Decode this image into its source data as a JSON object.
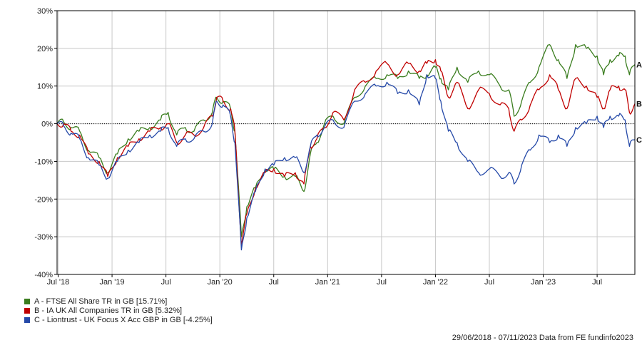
{
  "chart_data": {
    "type": "line",
    "title": "",
    "xlabel": "",
    "ylabel": "",
    "ylim": [
      -40,
      30
    ],
    "y_ticks": [
      30,
      20,
      10,
      0,
      -10,
      -20,
      -30,
      -40
    ],
    "y_tick_labels": [
      "30%",
      "20%",
      "10%",
      "0%",
      "-10%",
      "-20%",
      "-30%",
      "-40%"
    ],
    "x_range": [
      2018.49,
      2023.85
    ],
    "x_ticks": [
      {
        "x": 2018.5,
        "label": "Jul '18"
      },
      {
        "x": 2019.0,
        "label": "Jan '19"
      },
      {
        "x": 2019.5,
        "label": "Jul"
      },
      {
        "x": 2020.0,
        "label": "Jan '20"
      },
      {
        "x": 2020.5,
        "label": "Jul"
      },
      {
        "x": 2021.0,
        "label": "Jan '21"
      },
      {
        "x": 2021.5,
        "label": "Jul"
      },
      {
        "x": 2022.0,
        "label": "Jan '22"
      },
      {
        "x": 2022.5,
        "label": "Jul"
      },
      {
        "x": 2023.0,
        "label": "Jan '23"
      },
      {
        "x": 2023.5,
        "label": "Jul"
      }
    ],
    "grid": true,
    "legend_position": "bottom-left",
    "series": [
      {
        "name": "A - FTSE All Share TR in GB [15.71%]",
        "end_label": "A",
        "color": "#3a7d1e",
        "points": [
          [
            2018.49,
            0
          ],
          [
            2018.55,
            0.5
          ],
          [
            2018.62,
            -1
          ],
          [
            2018.7,
            -2
          ],
          [
            2018.78,
            -7
          ],
          [
            2018.88,
            -9
          ],
          [
            2018.96,
            -13
          ],
          [
            2019.05,
            -8
          ],
          [
            2019.15,
            -4
          ],
          [
            2019.25,
            -2
          ],
          [
            2019.35,
            -1
          ],
          [
            2019.45,
            1
          ],
          [
            2019.52,
            3
          ],
          [
            2019.6,
            -3
          ],
          [
            2019.68,
            -1
          ],
          [
            2019.76,
            -2
          ],
          [
            2019.85,
            1
          ],
          [
            2019.93,
            3
          ],
          [
            2019.97,
            7
          ],
          [
            2020.03,
            6
          ],
          [
            2020.1,
            4
          ],
          [
            2020.14,
            -2
          ],
          [
            2020.2,
            -30
          ],
          [
            2020.25,
            -22
          ],
          [
            2020.33,
            -17
          ],
          [
            2020.42,
            -12
          ],
          [
            2020.5,
            -12
          ],
          [
            2020.6,
            -14
          ],
          [
            2020.7,
            -14
          ],
          [
            2020.78,
            -18
          ],
          [
            2020.84,
            -8
          ],
          [
            2020.9,
            -5
          ],
          [
            2020.97,
            0
          ],
          [
            2021.05,
            2
          ],
          [
            2021.15,
            0
          ],
          [
            2021.25,
            7
          ],
          [
            2021.35,
            10
          ],
          [
            2021.45,
            12
          ],
          [
            2021.55,
            13
          ],
          [
            2021.65,
            12
          ],
          [
            2021.75,
            14
          ],
          [
            2021.85,
            12
          ],
          [
            2021.92,
            13
          ],
          [
            2022.0,
            15
          ],
          [
            2022.05,
            12
          ],
          [
            2022.12,
            9
          ],
          [
            2022.2,
            15
          ],
          [
            2022.3,
            11
          ],
          [
            2022.4,
            14
          ],
          [
            2022.5,
            13
          ],
          [
            2022.6,
            10
          ],
          [
            2022.68,
            9
          ],
          [
            2022.73,
            2
          ],
          [
            2022.8,
            6
          ],
          [
            2022.88,
            11
          ],
          [
            2022.96,
            15
          ],
          [
            2023.06,
            21
          ],
          [
            2023.14,
            17
          ],
          [
            2023.22,
            12
          ],
          [
            2023.3,
            21
          ],
          [
            2023.4,
            20
          ],
          [
            2023.5,
            18
          ],
          [
            2023.56,
            13
          ],
          [
            2023.62,
            17
          ],
          [
            2023.7,
            18
          ],
          [
            2023.76,
            18
          ],
          [
            2023.8,
            13
          ],
          [
            2023.85,
            15.71
          ]
        ]
      },
      {
        "name": "B - IA UK All Companies TR in GB [5.32%]",
        "end_label": "B",
        "color": "#c00000",
        "points": [
          [
            2018.49,
            0
          ],
          [
            2018.55,
            0
          ],
          [
            2018.62,
            -2
          ],
          [
            2018.7,
            -3
          ],
          [
            2018.78,
            -8
          ],
          [
            2018.88,
            -10
          ],
          [
            2018.96,
            -14
          ],
          [
            2019.05,
            -9
          ],
          [
            2019.15,
            -6
          ],
          [
            2019.25,
            -4
          ],
          [
            2019.35,
            -2
          ],
          [
            2019.45,
            -1
          ],
          [
            2019.52,
            0
          ],
          [
            2019.6,
            -5
          ],
          [
            2019.68,
            -3
          ],
          [
            2019.76,
            -3
          ],
          [
            2019.85,
            -1
          ],
          [
            2019.93,
            2
          ],
          [
            2019.97,
            7
          ],
          [
            2020.03,
            6
          ],
          [
            2020.1,
            4
          ],
          [
            2020.14,
            -2
          ],
          [
            2020.2,
            -32
          ],
          [
            2020.25,
            -24
          ],
          [
            2020.33,
            -17
          ],
          [
            2020.42,
            -13
          ],
          [
            2020.5,
            -12
          ],
          [
            2020.6,
            -14
          ],
          [
            2020.7,
            -13
          ],
          [
            2020.78,
            -16
          ],
          [
            2020.84,
            -6
          ],
          [
            2020.9,
            -4
          ],
          [
            2020.97,
            -1
          ],
          [
            2021.05,
            3
          ],
          [
            2021.15,
            1
          ],
          [
            2021.25,
            9
          ],
          [
            2021.35,
            11
          ],
          [
            2021.45,
            14
          ],
          [
            2021.55,
            16
          ],
          [
            2021.65,
            13
          ],
          [
            2021.75,
            16
          ],
          [
            2021.85,
            14
          ],
          [
            2021.92,
            16
          ],
          [
            2022.0,
            17
          ],
          [
            2022.05,
            14
          ],
          [
            2022.12,
            7
          ],
          [
            2022.2,
            11
          ],
          [
            2022.3,
            4
          ],
          [
            2022.4,
            9
          ],
          [
            2022.5,
            8
          ],
          [
            2022.6,
            5
          ],
          [
            2022.68,
            4
          ],
          [
            2022.73,
            -2
          ],
          [
            2022.8,
            1
          ],
          [
            2022.88,
            5
          ],
          [
            2022.96,
            9
          ],
          [
            2023.06,
            13
          ],
          [
            2023.14,
            9
          ],
          [
            2023.22,
            4
          ],
          [
            2023.3,
            12
          ],
          [
            2023.4,
            10
          ],
          [
            2023.5,
            7
          ],
          [
            2023.56,
            4
          ],
          [
            2023.62,
            9
          ],
          [
            2023.7,
            10
          ],
          [
            2023.76,
            9
          ],
          [
            2023.8,
            3
          ],
          [
            2023.85,
            5.32
          ]
        ]
      },
      {
        "name": "C - Liontrust - UK Focus X Acc GBP in GB [-4.25%]",
        "end_label": "C",
        "color": "#2549a8",
        "points": [
          [
            2018.49,
            0
          ],
          [
            2018.55,
            -0.5
          ],
          [
            2018.62,
            -2.5
          ],
          [
            2018.7,
            -4
          ],
          [
            2018.78,
            -9
          ],
          [
            2018.88,
            -11
          ],
          [
            2018.96,
            -14.5
          ],
          [
            2019.05,
            -10
          ],
          [
            2019.15,
            -7
          ],
          [
            2019.25,
            -5
          ],
          [
            2019.35,
            -3
          ],
          [
            2019.45,
            -2
          ],
          [
            2019.52,
            -1
          ],
          [
            2019.6,
            -6
          ],
          [
            2019.68,
            -4
          ],
          [
            2019.76,
            -4
          ],
          [
            2019.85,
            -2
          ],
          [
            2019.93,
            0
          ],
          [
            2019.97,
            6
          ],
          [
            2020.03,
            5
          ],
          [
            2020.1,
            2
          ],
          [
            2020.14,
            -5
          ],
          [
            2020.2,
            -33.5
          ],
          [
            2020.25,
            -25
          ],
          [
            2020.33,
            -18
          ],
          [
            2020.42,
            -12
          ],
          [
            2020.5,
            -11
          ],
          [
            2020.6,
            -9
          ],
          [
            2020.7,
            -9
          ],
          [
            2020.78,
            -13
          ],
          [
            2020.84,
            -6
          ],
          [
            2020.9,
            -3
          ],
          [
            2020.97,
            -1
          ],
          [
            2021.05,
            1
          ],
          [
            2021.15,
            -1
          ],
          [
            2021.25,
            6
          ],
          [
            2021.35,
            8
          ],
          [
            2021.45,
            10
          ],
          [
            2021.55,
            11
          ],
          [
            2021.65,
            8
          ],
          [
            2021.75,
            9
          ],
          [
            2021.85,
            5
          ],
          [
            2021.92,
            13
          ],
          [
            2022.0,
            12
          ],
          [
            2022.05,
            6
          ],
          [
            2022.12,
            -2
          ],
          [
            2022.2,
            -5
          ],
          [
            2022.3,
            -10
          ],
          [
            2022.4,
            -13
          ],
          [
            2022.5,
            -12
          ],
          [
            2022.6,
            -14
          ],
          [
            2022.68,
            -13
          ],
          [
            2022.73,
            -16
          ],
          [
            2022.8,
            -11
          ],
          [
            2022.88,
            -7
          ],
          [
            2022.96,
            -3
          ],
          [
            2023.06,
            -5
          ],
          [
            2023.14,
            -3
          ],
          [
            2023.22,
            -6
          ],
          [
            2023.3,
            -1
          ],
          [
            2023.4,
            0
          ],
          [
            2023.5,
            2
          ],
          [
            2023.56,
            -1
          ],
          [
            2023.62,
            2
          ],
          [
            2023.7,
            2
          ],
          [
            2023.76,
            1
          ],
          [
            2023.8,
            -6
          ],
          [
            2023.85,
            -4.25
          ]
        ]
      }
    ],
    "footer_text": "29/06/2018 - 07/11/2023 Data from FE fundinfo2023"
  }
}
